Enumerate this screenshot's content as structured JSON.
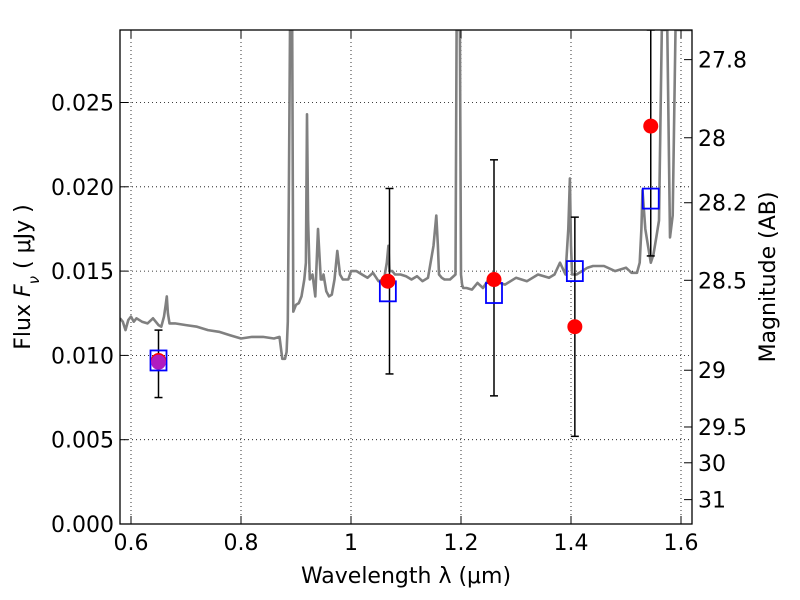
{
  "chart_data": {
    "type": "scatter",
    "title": "",
    "xlabel": "Wavelength  λ (μm)",
    "ylabel": "Flux  F_ν  ( μJy )",
    "ylabel_parts": {
      "prefix": "Flux  ",
      "symbol": "F",
      "subscript": "ν",
      "unit": "  ( μJy )"
    },
    "y2label": "Magnitude (AB)",
    "xlim": [
      0.58,
      1.62
    ],
    "ylim": [
      0.0,
      0.0293
    ],
    "grid": true,
    "x_ticks": [
      0.6,
      0.8,
      1.0,
      1.2,
      1.4,
      1.6
    ],
    "x_tick_labels": [
      "0.6",
      "0.8",
      "1",
      "1.2",
      "1.4",
      "1.6"
    ],
    "y_ticks": [
      0.0,
      0.005,
      0.01,
      0.015,
      0.02,
      0.025
    ],
    "y_tick_labels": [
      "0.000",
      "0.005",
      "0.010",
      "0.015",
      "0.020",
      "0.025"
    ],
    "y2_tick_labels": [
      "27.8",
      "28",
      "28.2",
      "28.5",
      "29",
      "29.5",
      "30",
      "31"
    ],
    "y2_tick_values": [
      27.8,
      28.0,
      28.2,
      28.5,
      29.0,
      29.5,
      30.0,
      31.0
    ],
    "series": [
      {
        "style": "line",
        "color": "#808080",
        "x": [
          0.58,
          0.585,
          0.59,
          0.595,
          0.6,
          0.605,
          0.61,
          0.62,
          0.63,
          0.64,
          0.65,
          0.655,
          0.66,
          0.663,
          0.665,
          0.667,
          0.67,
          0.68,
          0.7,
          0.72,
          0.74,
          0.76,
          0.78,
          0.8,
          0.82,
          0.84,
          0.86,
          0.87,
          0.875,
          0.88,
          0.883,
          0.885,
          0.887,
          0.889,
          0.891,
          0.893,
          0.895,
          0.9,
          0.905,
          0.91,
          0.915,
          0.918,
          0.92,
          0.922,
          0.925,
          0.93,
          0.935,
          0.94,
          0.945,
          0.948,
          0.95,
          0.955,
          0.96,
          0.965,
          0.97,
          0.975,
          0.98,
          0.985,
          0.99,
          0.995,
          1.0,
          1.01,
          1.02,
          1.03,
          1.04,
          1.05,
          1.06,
          1.065,
          1.068,
          1.07,
          1.075,
          1.08,
          1.09,
          1.1,
          1.11,
          1.12,
          1.13,
          1.14,
          1.15,
          1.155,
          1.158,
          1.16,
          1.165,
          1.17,
          1.18,
          1.19,
          1.192,
          1.194,
          1.196,
          1.198,
          1.2,
          1.202,
          1.204,
          1.206,
          1.21,
          1.22,
          1.23,
          1.24,
          1.25,
          1.26,
          1.27,
          1.28,
          1.3,
          1.32,
          1.34,
          1.36,
          1.37,
          1.38,
          1.39,
          1.395,
          1.398,
          1.4,
          1.402,
          1.405,
          1.41,
          1.42,
          1.43,
          1.44,
          1.46,
          1.48,
          1.5,
          1.51,
          1.52,
          1.525,
          1.528,
          1.53,
          1.535,
          1.54,
          1.545,
          1.55,
          1.555,
          1.56,
          1.565,
          1.57,
          1.575,
          1.58,
          1.585,
          1.59,
          1.595,
          1.6,
          1.605,
          1.61,
          1.62
        ],
        "y": [
          0.0122,
          0.012,
          0.0115,
          0.0121,
          0.0123,
          0.012,
          0.0122,
          0.012,
          0.0119,
          0.0122,
          0.0118,
          0.0117,
          0.0123,
          0.013,
          0.0135,
          0.0125,
          0.0119,
          0.0119,
          0.0118,
          0.0117,
          0.0115,
          0.0114,
          0.0112,
          0.011,
          0.0111,
          0.0111,
          0.011,
          0.0111,
          0.0098,
          0.0098,
          0.0102,
          0.012,
          0.02,
          0.0293,
          0.0293,
          0.0293,
          0.0126,
          0.013,
          0.0131,
          0.0135,
          0.0145,
          0.0155,
          0.0243,
          0.018,
          0.0145,
          0.0148,
          0.0135,
          0.0175,
          0.0145,
          0.0145,
          0.0148,
          0.0138,
          0.0135,
          0.0136,
          0.0145,
          0.0162,
          0.0148,
          0.0145,
          0.0145,
          0.0145,
          0.015,
          0.015,
          0.0148,
          0.0146,
          0.0149,
          0.0144,
          0.0145,
          0.0155,
          0.0165,
          0.015,
          0.015,
          0.0148,
          0.0148,
          0.0147,
          0.0145,
          0.0147,
          0.0144,
          0.0146,
          0.0165,
          0.0183,
          0.0165,
          0.0148,
          0.0146,
          0.0145,
          0.0145,
          0.0148,
          0.0293,
          0.0293,
          0.0293,
          0.0293,
          0.0148,
          0.0142,
          0.014,
          0.014,
          0.014,
          0.0139,
          0.0143,
          0.014,
          0.0145,
          0.0143,
          0.0143,
          0.0142,
          0.0146,
          0.0144,
          0.0148,
          0.0146,
          0.0148,
          0.0155,
          0.0148,
          0.0175,
          0.0205,
          0.0165,
          0.0148,
          0.0148,
          0.0148,
          0.015,
          0.0152,
          0.0153,
          0.0153,
          0.015,
          0.0152,
          0.0149,
          0.0149,
          0.0155,
          0.0175,
          0.0198,
          0.0175,
          0.0165,
          0.0155,
          0.016,
          0.017,
          0.018,
          0.0293,
          0.0293,
          0.0293,
          0.017,
          0.0183,
          0.0293,
          0.0293,
          0.0293,
          0.0293,
          0.0293,
          0.0293
        ]
      },
      {
        "style": "errorbar",
        "color": "#000000",
        "x": [
          0.65,
          1.07,
          1.26,
          1.407,
          1.545
        ],
        "y_low": [
          0.0075,
          0.0089,
          0.0076,
          0.0052,
          0.0159
        ],
        "y_high": [
          0.0115,
          0.0199,
          0.0216,
          0.0182,
          0.0293
        ]
      },
      {
        "style": "open-square",
        "color": "#0000ff",
        "x": [
          0.65,
          1.067,
          1.26,
          1.407,
          1.545
        ],
        "y": [
          0.0097,
          0.0138,
          0.0137,
          0.015,
          0.0193
        ]
      },
      {
        "style": "filled-circle",
        "color": "#ff0000",
        "x": [
          0.65,
          1.067,
          1.26,
          1.407,
          1.545
        ],
        "y": [
          0.0097,
          0.0144,
          0.0145,
          0.0117,
          0.0236
        ]
      },
      {
        "style": "filled-circle",
        "color": "#b01cc0",
        "x": [
          0.65
        ],
        "y": [
          0.0096
        ]
      }
    ]
  }
}
